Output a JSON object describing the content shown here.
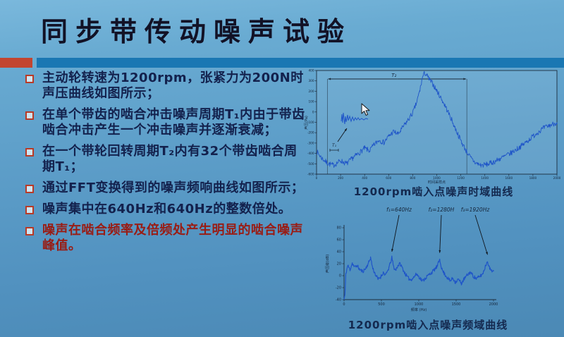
{
  "slide": {
    "title": "同步带传动噪声试验",
    "bullets": [
      {
        "text": "主动轮转速为1200rpm，张紧力为200N时声压曲线如图所示；",
        "emphasis": false
      },
      {
        "text": "在单个带齿的啮合冲击噪声周期T₁内由于带齿啮合冲击产生一个冲击噪声并逐渐衰减；",
        "emphasis": false
      },
      {
        "text": "在一个带轮回转周期T₂内有32个带齿啮合周期T₁；",
        "emphasis": false
      },
      {
        "text": "通过FFT变换得到的噪声频响曲线如图所示；",
        "emphasis": false
      },
      {
        "text": "噪声集中在640Hz和640Hz的整数倍处。",
        "emphasis": false
      },
      {
        "text": "噪声在啮合频率及倍频处产生明显的啮合噪声峰值。",
        "emphasis": true
      }
    ],
    "colors": {
      "accent_red": "#c24530",
      "header_blue": "#1a77b3",
      "body_text": "#13214d",
      "emphasis_text": "#991c14",
      "curve_blue": "#1f55c8"
    }
  },
  "chart_data": [
    {
      "type": "line",
      "title": "1200rpm啮入点噪声时域曲线",
      "xlabel": "时间采样点",
      "ylabel": "声压(Pa)",
      "xlim": [
        0,
        2000
      ],
      "ylim": [
        -600,
        400
      ],
      "xticks": [
        0,
        200,
        400,
        600,
        800,
        1000,
        1200,
        1400,
        1600,
        1800,
        2000
      ],
      "yticks": [
        400,
        300,
        200,
        100,
        0,
        -100,
        -200,
        -300,
        -400,
        -500,
        -600
      ],
      "grid": false,
      "series": [
        {
          "name": "sound-pressure-time-history",
          "color": "#1f55c8",
          "noise_amp": 26,
          "anchors": [
            [
              0,
              -380
            ],
            [
              40,
              -440
            ],
            [
              90,
              -495
            ],
            [
              140,
              -515
            ],
            [
              200,
              -470
            ],
            [
              250,
              -500
            ],
            [
              300,
              -445
            ],
            [
              350,
              -400
            ],
            [
              400,
              -350
            ],
            [
              440,
              -375
            ],
            [
              480,
              -315
            ],
            [
              520,
              -270
            ],
            [
              560,
              -295
            ],
            [
              600,
              -235
            ],
            [
              640,
              -190
            ],
            [
              680,
              -215
            ],
            [
              720,
              -145
            ],
            [
              760,
              -80
            ],
            [
              800,
              -10
            ],
            [
              830,
              80
            ],
            [
              860,
              210
            ],
            [
              880,
              330
            ],
            [
              900,
              378
            ],
            [
              915,
              355
            ],
            [
              940,
              310
            ],
            [
              970,
              265
            ],
            [
              1000,
              205
            ],
            [
              1040,
              125
            ],
            [
              1080,
              35
            ],
            [
              1120,
              -65
            ],
            [
              1160,
              -175
            ],
            [
              1200,
              -275
            ],
            [
              1240,
              -365
            ],
            [
              1280,
              -440
            ],
            [
              1320,
              -490
            ],
            [
              1370,
              -515
            ],
            [
              1420,
              -505
            ],
            [
              1470,
              -485
            ],
            [
              1520,
              -455
            ],
            [
              1570,
              -425
            ],
            [
              1620,
              -395
            ],
            [
              1670,
              -355
            ],
            [
              1720,
              -315
            ],
            [
              1770,
              -265
            ],
            [
              1830,
              -205
            ],
            [
              1890,
              -155
            ],
            [
              1950,
              -125
            ],
            [
              2000,
              -100
            ]
          ]
        }
      ],
      "annotations": {
        "t2_label": "T₂",
        "t2_span": [
          90,
          1250
        ],
        "t1_label": "T₁",
        "inset_points": [
          [
            0,
            16
          ],
          [
            1,
            6
          ],
          [
            2,
            18
          ],
          [
            3,
            4
          ],
          [
            5,
            20
          ],
          [
            6,
            9
          ],
          [
            7,
            17
          ],
          [
            9,
            7
          ],
          [
            10,
            15
          ],
          [
            12,
            9
          ],
          [
            14,
            16
          ],
          [
            16,
            10
          ],
          [
            18,
            15
          ],
          [
            20,
            11
          ],
          [
            22,
            14
          ],
          [
            24,
            11
          ],
          [
            26,
            14
          ],
          [
            29,
            12
          ],
          [
            32,
            14
          ],
          [
            35,
            12
          ],
          [
            38,
            13
          ]
        ]
      }
    },
    {
      "type": "line",
      "title": "1200rpm啮入点噪声频域曲线",
      "xlabel": "频率 (Hz)",
      "ylabel": "声压级(dB)",
      "xlim": [
        0,
        2000
      ],
      "ylim": [
        -40,
        80
      ],
      "xticks": [
        0,
        500,
        1000,
        1500,
        2000
      ],
      "yticks": [
        80,
        60,
        40,
        20,
        0,
        -20,
        -40
      ],
      "grid": false,
      "series": [
        {
          "name": "sound-pressure-level-spectrum",
          "color": "#1f55c8",
          "noise_amp": 3,
          "anchors": [
            [
              0,
              -40
            ],
            [
              12,
              -32
            ],
            [
              25,
              4
            ],
            [
              50,
              17
            ],
            [
              80,
              10
            ],
            [
              110,
              21
            ],
            [
              140,
              14
            ],
            [
              175,
              17
            ],
            [
              210,
              10
            ],
            [
              250,
              7
            ],
            [
              290,
              12
            ],
            [
              330,
              22
            ],
            [
              355,
              30
            ],
            [
              385,
              12
            ],
            [
              420,
              2
            ],
            [
              455,
              -6
            ],
            [
              490,
              -2
            ],
            [
              525,
              5
            ],
            [
              560,
              1
            ],
            [
              600,
              13
            ],
            [
              640,
              30
            ],
            [
              665,
              14
            ],
            [
              690,
              9
            ],
            [
              720,
              17
            ],
            [
              750,
              20
            ],
            [
              780,
              13
            ],
            [
              810,
              5
            ],
            [
              850,
              -3
            ],
            [
              890,
              -7
            ],
            [
              930,
              -3
            ],
            [
              970,
              3
            ],
            [
              1010,
              -3
            ],
            [
              1050,
              -9
            ],
            [
              1090,
              -4
            ],
            [
              1130,
              1
            ],
            [
              1170,
              5
            ],
            [
              1210,
              10
            ],
            [
              1250,
              16
            ],
            [
              1280,
              28
            ],
            [
              1310,
              10
            ],
            [
              1345,
              3
            ],
            [
              1380,
              -3
            ],
            [
              1420,
              -9
            ],
            [
              1455,
              -4
            ],
            [
              1490,
              -11
            ],
            [
              1530,
              -6
            ],
            [
              1570,
              -13
            ],
            [
              1610,
              -5
            ],
            [
              1650,
              1
            ],
            [
              1690,
              6
            ],
            [
              1730,
              -1
            ],
            [
              1770,
              -5
            ],
            [
              1810,
              -2
            ],
            [
              1855,
              3
            ],
            [
              1920,
              25
            ],
            [
              1950,
              11
            ],
            [
              1980,
              9
            ],
            [
              2000,
              7
            ]
          ]
        }
      ],
      "peak_labels": [
        {
          "text": "f₁=640Hz",
          "freq": 640,
          "peak_db": 30
        },
        {
          "text": "f₂=1280H",
          "freq": 1280,
          "peak_db": 28
        },
        {
          "text": "f₃=1920Hz",
          "freq": 1920,
          "peak_db": 25
        }
      ]
    }
  ]
}
